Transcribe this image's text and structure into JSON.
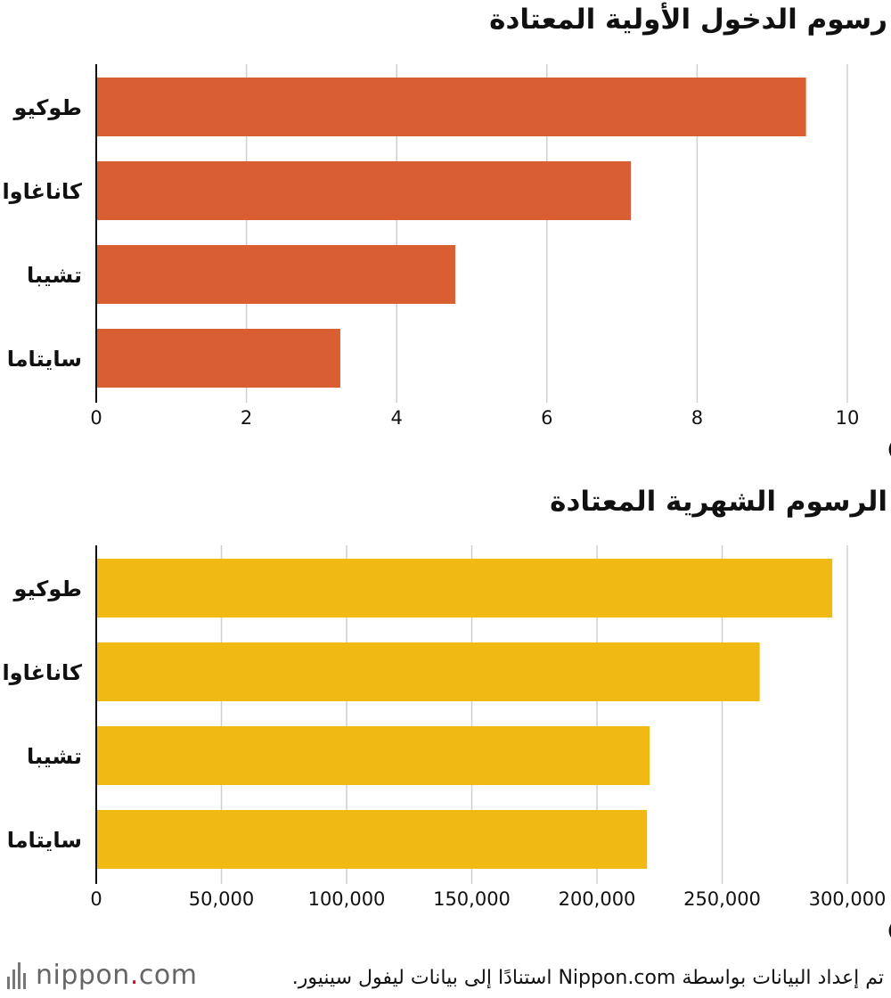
{
  "chart_data": [
    {
      "type": "bar",
      "title": "رسوم الدخول الأولية المعتادة",
      "categories": [
        "طوكيو",
        "كاناغاوا",
        "تشيبا",
        "سايتاما"
      ],
      "values": [
        9.45,
        7.12,
        4.78,
        3.25
      ],
      "unit": "(مليون ين)",
      "xlim": [
        0,
        10
      ],
      "ticks": [
        "0",
        "2",
        "4",
        "6",
        "8",
        "10"
      ],
      "color": "#D95F33",
      "grid": true
    },
    {
      "type": "bar",
      "title": "الرسوم الشهرية المعتادة",
      "categories": [
        "طوكيو",
        "كاناغاوا",
        "تشيبا",
        "سايتاما"
      ],
      "values": [
        294000,
        265000,
        221000,
        220000
      ],
      "unit": "(ين)",
      "xlim": [
        0,
        300000
      ],
      "ticks": [
        "0",
        "50,000",
        "100,000",
        "150,000",
        "200,000",
        "250,000",
        "300,000"
      ],
      "color": "#F0B914",
      "grid": true
    }
  ],
  "footer": {
    "logo_main": "nippon",
    "logo_dot": ".",
    "logo_tail": "com",
    "source": "تم إعداد البيانات بواسطة Nippon.com استنادًا إلى بيانات ليفول سينيور."
  }
}
